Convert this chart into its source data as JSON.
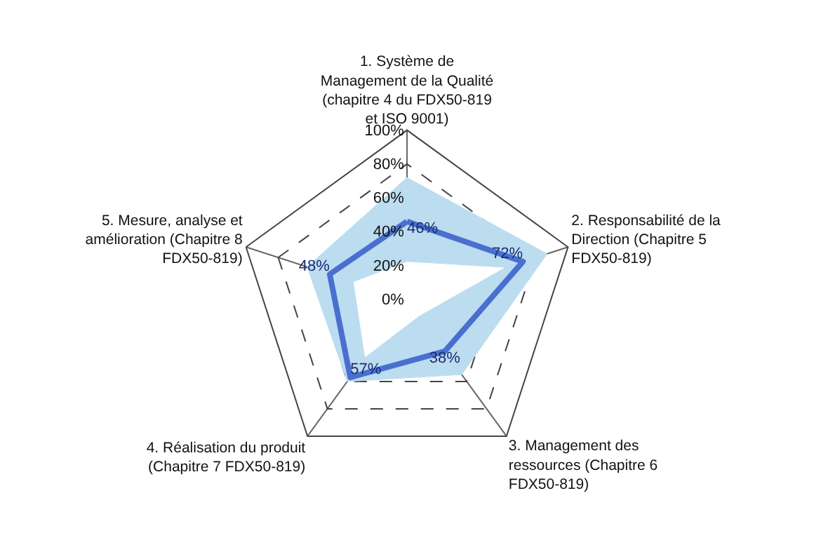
{
  "chart_data": {
    "type": "radar",
    "categories": [
      "1. Système de\nManagement de la Qualité\n(chapitre 4 du FDX50-819\net ISO 9001)",
      "2. Responsabilité de la\nDirection (Chapitre 5\nFDX50-819)",
      "3. Management des\nressources (Chapitre 6\nFDX50-819)",
      "4. Réalisation du produit\n(Chapitre 7 FDX50-819)",
      "5. Mesure, analyse et\namélioration (Chapitre 8\nFDX50-819)"
    ],
    "series": [
      {
        "type": "area",
        "color": "#bcdcf0",
        "values": [
          72,
          87,
          55,
          60,
          62
        ]
      },
      {
        "type": "area",
        "color": "#ffffff",
        "values": [
          22,
          60,
          12,
          42,
          33
        ]
      },
      {
        "color": "#4a6fcf",
        "values": [
          46,
          72,
          38,
          57,
          48
        ],
        "value_labels": [
          "46%",
          "72%",
          "38%",
          "57%",
          "48%"
        ]
      }
    ],
    "ylim": [
      0,
      100
    ],
    "yticks": [
      {
        "value": 0,
        "label": "0%"
      },
      {
        "value": 20,
        "label": "20%"
      },
      {
        "value": 40,
        "label": "40%"
      },
      {
        "value": 60,
        "label": "60%"
      },
      {
        "value": 80,
        "label": "80%"
      },
      {
        "value": 100,
        "label": "100%"
      }
    ],
    "grid": true,
    "marker": "none",
    "line_style": "solid"
  }
}
